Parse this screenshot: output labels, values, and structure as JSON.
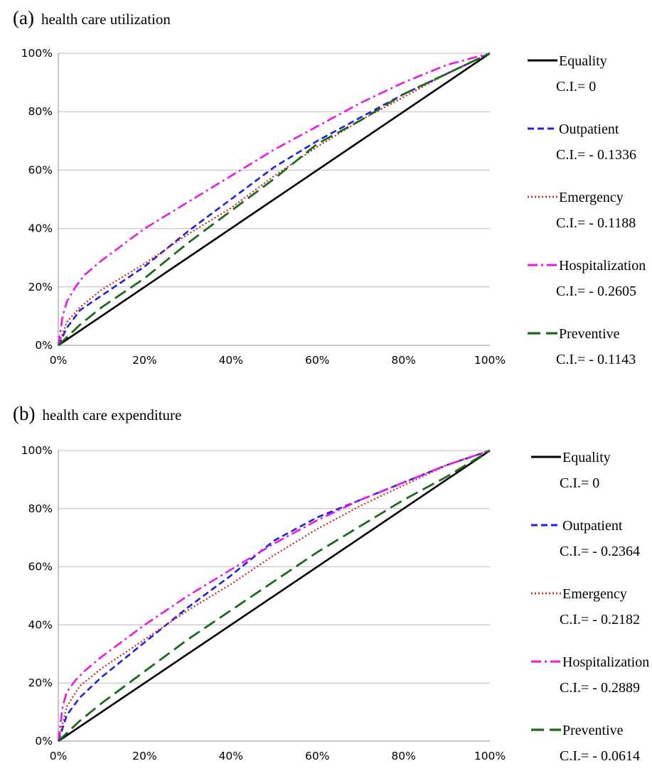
{
  "chart_data": [
    {
      "type": "line",
      "panel": "(a)",
      "title": "health care utilization",
      "xlabel": "",
      "ylabel": "",
      "xlim": [
        0,
        100
      ],
      "ylim": [
        0,
        100
      ],
      "x_ticks": [
        "0%",
        "20%",
        "40%",
        "60%",
        "80%",
        "100%"
      ],
      "y_ticks": [
        "0%",
        "20%",
        "40%",
        "60%",
        "80%",
        "100%"
      ],
      "grid": "horizontal",
      "legend_position": "right",
      "series": [
        {
          "name": "Equality",
          "ci": "C.I.= 0",
          "color": "#000000",
          "dash": "solid",
          "x": [
            0,
            100
          ],
          "y": [
            0,
            100
          ]
        },
        {
          "name": "Outpatient",
          "ci": "C.I.= - 0.1336",
          "color": "#1f1fe6",
          "dash": "dashed",
          "x": [
            0,
            2,
            5,
            10,
            20,
            30,
            40,
            50,
            60,
            70,
            80,
            90,
            100
          ],
          "y": [
            0,
            6,
            12,
            17,
            27,
            39,
            50,
            61,
            70,
            78,
            86,
            93,
            100
          ]
        },
        {
          "name": "Emergency",
          "ci": "C.I.= - 0.1188",
          "color": "#d42020",
          "dash": "dotted",
          "x": [
            0,
            2,
            5,
            10,
            20,
            30,
            40,
            50,
            60,
            70,
            80,
            90,
            100
          ],
          "y": [
            0,
            8,
            13,
            19,
            28,
            38,
            47,
            58,
            68,
            77,
            85,
            93,
            100
          ]
        },
        {
          "name": "Hospitalization",
          "ci": "C.I.= - 0.2605",
          "color": "#e619e6",
          "dash": "dashdot",
          "x": [
            0,
            1,
            2,
            4,
            6,
            10,
            20,
            30,
            40,
            50,
            60,
            70,
            80,
            90,
            100
          ],
          "y": [
            0,
            10,
            15,
            20,
            24,
            29,
            40,
            49,
            58,
            67,
            75,
            83,
            90,
            96,
            100
          ]
        },
        {
          "name": "Preventive",
          "ci": "C.I.= - 0.1143",
          "color": "#1b6a1b",
          "dash": "longdash",
          "x": [
            0,
            5,
            10,
            20,
            30,
            40,
            50,
            60,
            70,
            80,
            90,
            100
          ],
          "y": [
            0,
            7,
            13,
            23,
            35,
            46,
            57,
            69,
            77,
            86,
            93,
            100
          ]
        }
      ]
    },
    {
      "type": "line",
      "panel": "(b)",
      "title": "health care expenditure",
      "xlabel": "",
      "ylabel": "",
      "xlim": [
        0,
        100
      ],
      "ylim": [
        0,
        100
      ],
      "x_ticks": [
        "0%",
        "20%",
        "40%",
        "60%",
        "80%",
        "100%"
      ],
      "y_ticks": [
        "0%",
        "20%",
        "40%",
        "60%",
        "80%",
        "100%"
      ],
      "grid": "horizontal",
      "legend_position": "right",
      "series": [
        {
          "name": "Equality",
          "ci": "C.I.= 0",
          "color": "#000000",
          "dash": "solid",
          "x": [
            0,
            100
          ],
          "y": [
            0,
            100
          ]
        },
        {
          "name": "Outpatient",
          "ci": "C.I.= - 0.2364",
          "color": "#1f1fe6",
          "dash": "dashed",
          "x": [
            0,
            2,
            5,
            10,
            20,
            30,
            40,
            50,
            60,
            70,
            80,
            90,
            100
          ],
          "y": [
            0,
            9,
            15,
            22,
            34,
            46,
            57,
            69,
            77,
            83,
            89,
            95,
            100
          ]
        },
        {
          "name": "Emergency",
          "ci": "C.I.= - 0.2182",
          "color": "#d42020",
          "dash": "dotted",
          "x": [
            0,
            2,
            5,
            10,
            20,
            30,
            40,
            50,
            60,
            70,
            80,
            90,
            100
          ],
          "y": [
            0,
            12,
            19,
            25,
            35,
            45,
            54,
            64,
            73,
            81,
            88,
            95,
            100
          ]
        },
        {
          "name": "Hospitalization",
          "ci": "C.I.= - 0.2889",
          "color": "#e619e6",
          "dash": "dashdot",
          "x": [
            0,
            1,
            2,
            4,
            6,
            10,
            20,
            30,
            40,
            50,
            60,
            70,
            80,
            90,
            100
          ],
          "y": [
            0,
            12,
            17,
            21,
            24,
            29,
            40,
            50,
            59,
            68,
            76,
            83,
            89,
            95,
            100
          ]
        },
        {
          "name": "Preventive",
          "ci": "C.I.= - 0.0614",
          "color": "#1b6a1b",
          "dash": "longdash",
          "x": [
            0,
            5,
            10,
            20,
            30,
            40,
            50,
            60,
            70,
            80,
            90,
            100
          ],
          "y": [
            0,
            7,
            13,
            24,
            35,
            45,
            55,
            65,
            74,
            83,
            91,
            100
          ]
        }
      ]
    }
  ]
}
